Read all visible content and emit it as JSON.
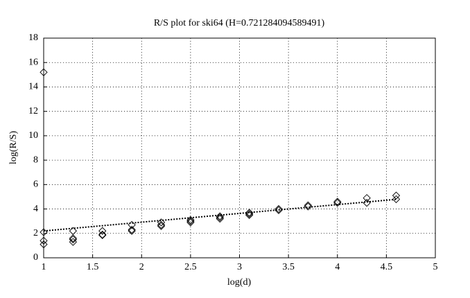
{
  "chart_data": {
    "type": "scatter",
    "title": "R/S plot for ski64 (H=0.721284094589491)",
    "x_label": "log(d)",
    "y_label": "log(R/S)",
    "x": [
      1,
      1,
      1,
      1,
      1.3,
      1.3,
      1.3,
      1.3,
      1.6,
      1.6,
      1.6,
      1.9,
      1.9,
      1.9,
      2.2,
      2.2,
      2.2,
      2.5,
      2.5,
      2.5,
      2.8,
      2.8,
      2.8,
      3.1,
      3.1,
      3.1,
      3.4,
      3.4,
      3.7,
      3.7,
      4.0,
      4.0,
      4.3,
      4.3,
      4.6,
      4.6
    ],
    "values": [
      15.2,
      2.1,
      1.4,
      1.1,
      2.2,
      1.6,
      1.3,
      1.5,
      2.2,
      1.9,
      1.85,
      2.7,
      2.3,
      2.2,
      2.9,
      2.7,
      2.6,
      3.1,
      3.0,
      2.9,
      3.4,
      3.3,
      3.2,
      3.7,
      3.6,
      3.5,
      4.0,
      3.9,
      4.3,
      4.2,
      4.6,
      4.5,
      4.9,
      4.5,
      5.1,
      4.8
    ],
    "color": "#000000",
    "fit": {
      "x": [
        1,
        4.6
      ],
      "values": [
        2.2,
        4.79
      ]
    },
    "xlim": [
      1,
      5
    ],
    "xticks": [
      1,
      1.5,
      2,
      2.5,
      3,
      3.5,
      4,
      4.5,
      5
    ],
    "ylim": [
      0,
      18
    ],
    "yticks": [
      0,
      2,
      4,
      6,
      8,
      10,
      12,
      14,
      16,
      18
    ],
    "grid": true
  }
}
